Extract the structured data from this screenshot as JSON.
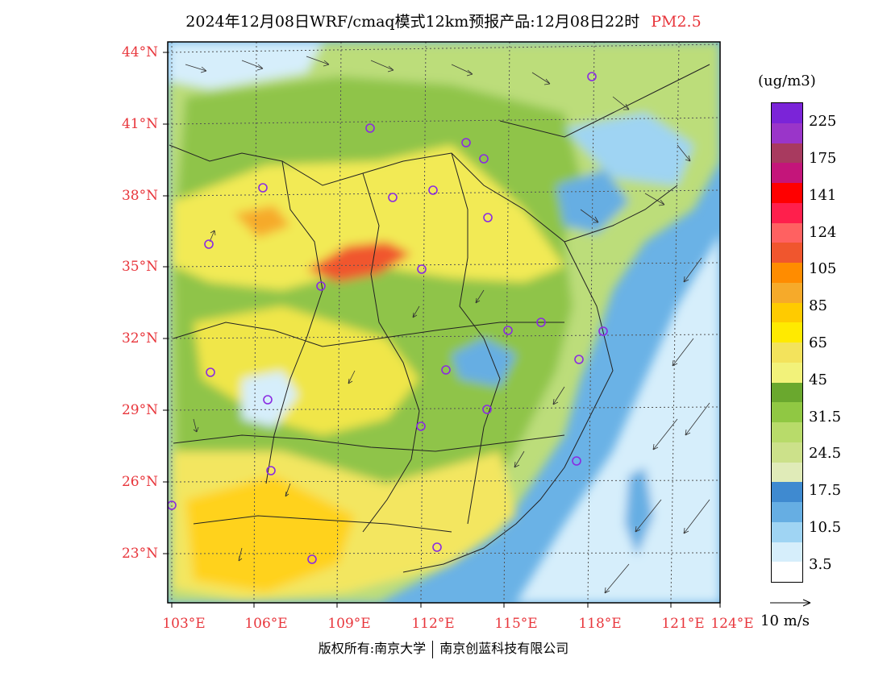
{
  "title": {
    "text": "2024年12月08日WRF/cmaq模式12km预报产品:12月08日22时",
    "pollutant": "PM2.5"
  },
  "axes": {
    "lat_labels": [
      "44°N",
      "41°N",
      "38°N",
      "35°N",
      "32°N",
      "29°N",
      "26°N",
      "23°N"
    ],
    "lon_labels": [
      "103°E",
      "106°E",
      "109°E",
      "112°E",
      "115°E",
      "118°E",
      "121°E",
      "124°E"
    ]
  },
  "legend": {
    "unit": "(ug/m3)",
    "labels": [
      "225",
      "175",
      "141",
      "124",
      "105",
      "85",
      "65",
      "45",
      "31.5",
      "24.5",
      "17.5",
      "10.5",
      "3.5"
    ],
    "colors": [
      "#7b24d8",
      "#9a35c9",
      "#a83a5f",
      "#c4157a",
      "#ff0000",
      "#ff1f4c",
      "#ff6161",
      "#f0562e",
      "#ff8c00",
      "#f6aa2a",
      "#ffcb00",
      "#ffea00",
      "#f3e35c",
      "#f2f27a",
      "#6aa82e",
      "#90c843",
      "#b8db6a",
      "#cce18a",
      "#e0ebb8",
      "#3f8ad0",
      "#66aee3",
      "#9fd4f3",
      "#d6eefb",
      "#ffffff"
    ]
  },
  "wind_reference": "10 m/s",
  "footer": {
    "left": "版权所有:南京大学",
    "right": "南京创蓝科技有限公司"
  }
}
